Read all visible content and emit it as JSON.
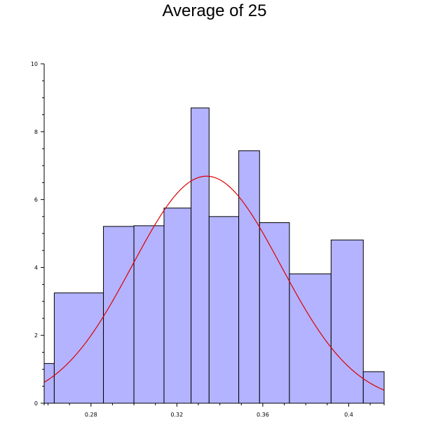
{
  "chart_data": {
    "type": "bar",
    "subtype": "histogram-with-fitted-curve",
    "title": "Average of 25",
    "xlabel": "",
    "ylabel": "",
    "xlim": [
      0.2582,
      0.4165
    ],
    "ylim": [
      0,
      10
    ],
    "x_ticks": [
      {
        "value": 0.28,
        "label": "0.28"
      },
      {
        "value": 0.32,
        "label": "0.32"
      },
      {
        "value": 0.36,
        "label": "0.36"
      },
      {
        "value": 0.4,
        "label": "0.4"
      }
    ],
    "y_ticks": [
      {
        "value": 0,
        "label": "0"
      },
      {
        "value": 2,
        "label": "2"
      },
      {
        "value": 4,
        "label": "4"
      },
      {
        "value": 6,
        "label": "6"
      },
      {
        "value": 8,
        "label": "8"
      },
      {
        "value": 10,
        "label": "10"
      }
    ],
    "bins": [
      {
        "x0": 0.2582,
        "x1": 0.2629,
        "value": 1.17
      },
      {
        "x0": 0.2629,
        "x1": 0.2858,
        "value": 3.25
      },
      {
        "x0": 0.2858,
        "x1": 0.3,
        "value": 5.21
      },
      {
        "x0": 0.3,
        "x1": 0.314,
        "value": 5.23
      },
      {
        "x0": 0.314,
        "x1": 0.3266,
        "value": 5.75
      },
      {
        "x0": 0.3266,
        "x1": 0.335,
        "value": 8.7
      },
      {
        "x0": 0.335,
        "x1": 0.3488,
        "value": 5.5
      },
      {
        "x0": 0.3488,
        "x1": 0.3585,
        "value": 7.44
      },
      {
        "x0": 0.3585,
        "x1": 0.3724,
        "value": 5.32
      },
      {
        "x0": 0.3724,
        "x1": 0.3918,
        "value": 3.81
      },
      {
        "x0": 0.3918,
        "x1": 0.4068,
        "value": 4.81
      },
      {
        "x0": 0.4068,
        "x1": 0.4165,
        "value": 0.93
      }
    ],
    "fitted_curve": {
      "type": "normal",
      "mean": 0.3338,
      "peak": 6.69,
      "sigma": 0.0346
    },
    "colors": {
      "bar_fill": "#b3b3ff",
      "bar_stroke": "#000000",
      "curve": "#dd0000",
      "axis": "#000000"
    },
    "grid": false,
    "legend": "none"
  }
}
